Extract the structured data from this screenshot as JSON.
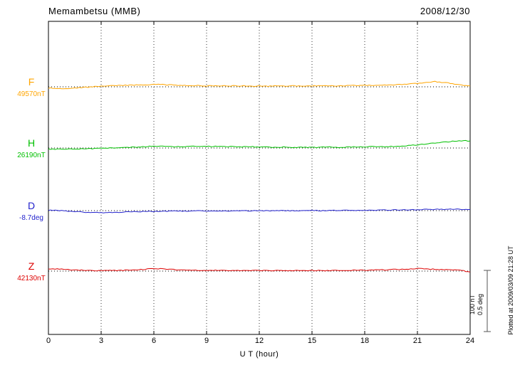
{
  "header": {
    "station": "Memambetsu (MMB)",
    "date": "2008/12/30"
  },
  "axis": {
    "xlabel": "U T (hour)",
    "x_ticks": [
      0,
      3,
      6,
      9,
      12,
      15,
      18,
      21,
      24
    ]
  },
  "scale_bar": {
    "line1": "100 nT",
    "line2": "0.5 deg"
  },
  "footer_note": "Plotted at 2009/03/09 21:28 UT",
  "chart_data": {
    "type": "line",
    "title": "Memambetsu (MMB) magnetogram 2008/12/30",
    "xlabel": "U T (hour)",
    "x_range": [
      0,
      24
    ],
    "x_ticks": [
      0,
      3,
      6,
      9,
      12,
      15,
      18,
      21,
      24
    ],
    "x_step_hours": 0.5,
    "grid": "dotted vertical every 3 hours, dotted horizontal baseline per trace",
    "scale": {
      "bar_nT": 100,
      "bar_deg": 0.5
    },
    "values_note": "values are deviations from each trace reference level, sampled every 0.5 hour",
    "series": [
      {
        "name": "F",
        "reference": "49570nT",
        "unit": "nT",
        "color": "#FFA500",
        "values": [
          -2,
          -2.5,
          -2.5,
          -2,
          -1,
          0,
          1,
          1.5,
          2,
          2.5,
          3,
          3,
          4,
          3.5,
          3,
          2.5,
          2,
          2,
          1.5,
          1.5,
          2,
          1.5,
          1.5,
          1,
          1.5,
          1,
          1.5,
          1,
          1.5,
          1,
          1.5,
          1.5,
          2,
          1.5,
          2,
          2,
          2.5,
          2,
          2.5,
          3,
          3.5,
          4.5,
          5.5,
          7,
          8.5,
          7,
          5,
          3,
          1.5
        ]
      },
      {
        "name": "H",
        "reference": "26190nT",
        "unit": "nT",
        "color": "#00C000",
        "values": [
          -1.5,
          -2,
          -1.5,
          -1.5,
          -1,
          -1,
          -0.5,
          0,
          0.5,
          1,
          1.5,
          2,
          3,
          3,
          2.5,
          2,
          2.5,
          3,
          2.5,
          2.5,
          2,
          2.5,
          2,
          2,
          1.5,
          1.5,
          1,
          1.5,
          1,
          1.5,
          1,
          1,
          1.5,
          1,
          1.5,
          2,
          2,
          2.5,
          2,
          2.5,
          3,
          4,
          5,
          6.5,
          8,
          9.5,
          11,
          12,
          11.5
        ]
      },
      {
        "name": "D",
        "reference": "-8.7deg",
        "unit": "deg",
        "color": "#2222CC",
        "values": [
          0.005,
          0.002,
          -0.003,
          -0.008,
          -0.012,
          -0.015,
          -0.016,
          -0.015,
          -0.013,
          -0.011,
          -0.009,
          -0.007,
          -0.006,
          -0.005,
          -0.004,
          -0.003,
          -0.003,
          -0.002,
          -0.002,
          -0.003,
          -0.002,
          -0.002,
          -0.001,
          -0.002,
          -0.001,
          -0.001,
          0,
          -0.001,
          0,
          0,
          0.001,
          0,
          0.001,
          0.001,
          0.002,
          0.002,
          0.003,
          0.003,
          0.004,
          0.005,
          0.006,
          0.007,
          0.008,
          0.009,
          0.01,
          0.01,
          0.011,
          0.01,
          0.009
        ]
      },
      {
        "name": "Z",
        "reference": "42130nT",
        "unit": "nT",
        "color": "#DD0000",
        "values": [
          4,
          3.5,
          2.5,
          2,
          1.5,
          1,
          0.5,
          1,
          1,
          1.5,
          2,
          3,
          4.5,
          3.5,
          2.5,
          2,
          1.5,
          1,
          1,
          1.5,
          1,
          1,
          0.5,
          1,
          1,
          0.5,
          1,
          0.5,
          1,
          0.5,
          1,
          1,
          0.5,
          1,
          1,
          1.5,
          1.5,
          2,
          2,
          2.5,
          3,
          3.5,
          4,
          3.5,
          3,
          2.5,
          2,
          1,
          -1.5
        ]
      }
    ]
  }
}
